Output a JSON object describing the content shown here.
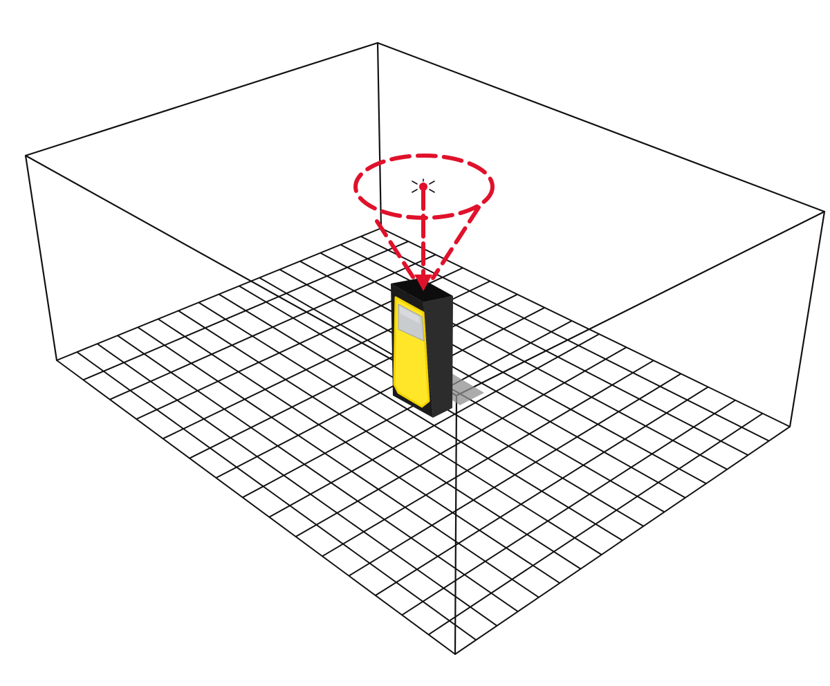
{
  "diagram": {
    "subject": "laser-distance-meter-room-measurement",
    "floor_grid": {
      "columns": 15,
      "rows": 16
    },
    "beam": {
      "style": "dashed",
      "shape": "cone",
      "target": "ceiling-point"
    },
    "device": {
      "orientation": "upright",
      "beam_direction": "up"
    },
    "colors": {
      "background": "#ffffff",
      "line": "#111111",
      "laser": "#e0112b",
      "device_body": "#1b1b1b",
      "device_side": "#2c2c2c",
      "device_front": "#ffe629",
      "device_trim": "#f2d300",
      "screen": "#c9ccce",
      "shadow": "#8f8f8f"
    },
    "icons": [
      "ceiling-target-icon",
      "downward-arrow-icon"
    ]
  }
}
